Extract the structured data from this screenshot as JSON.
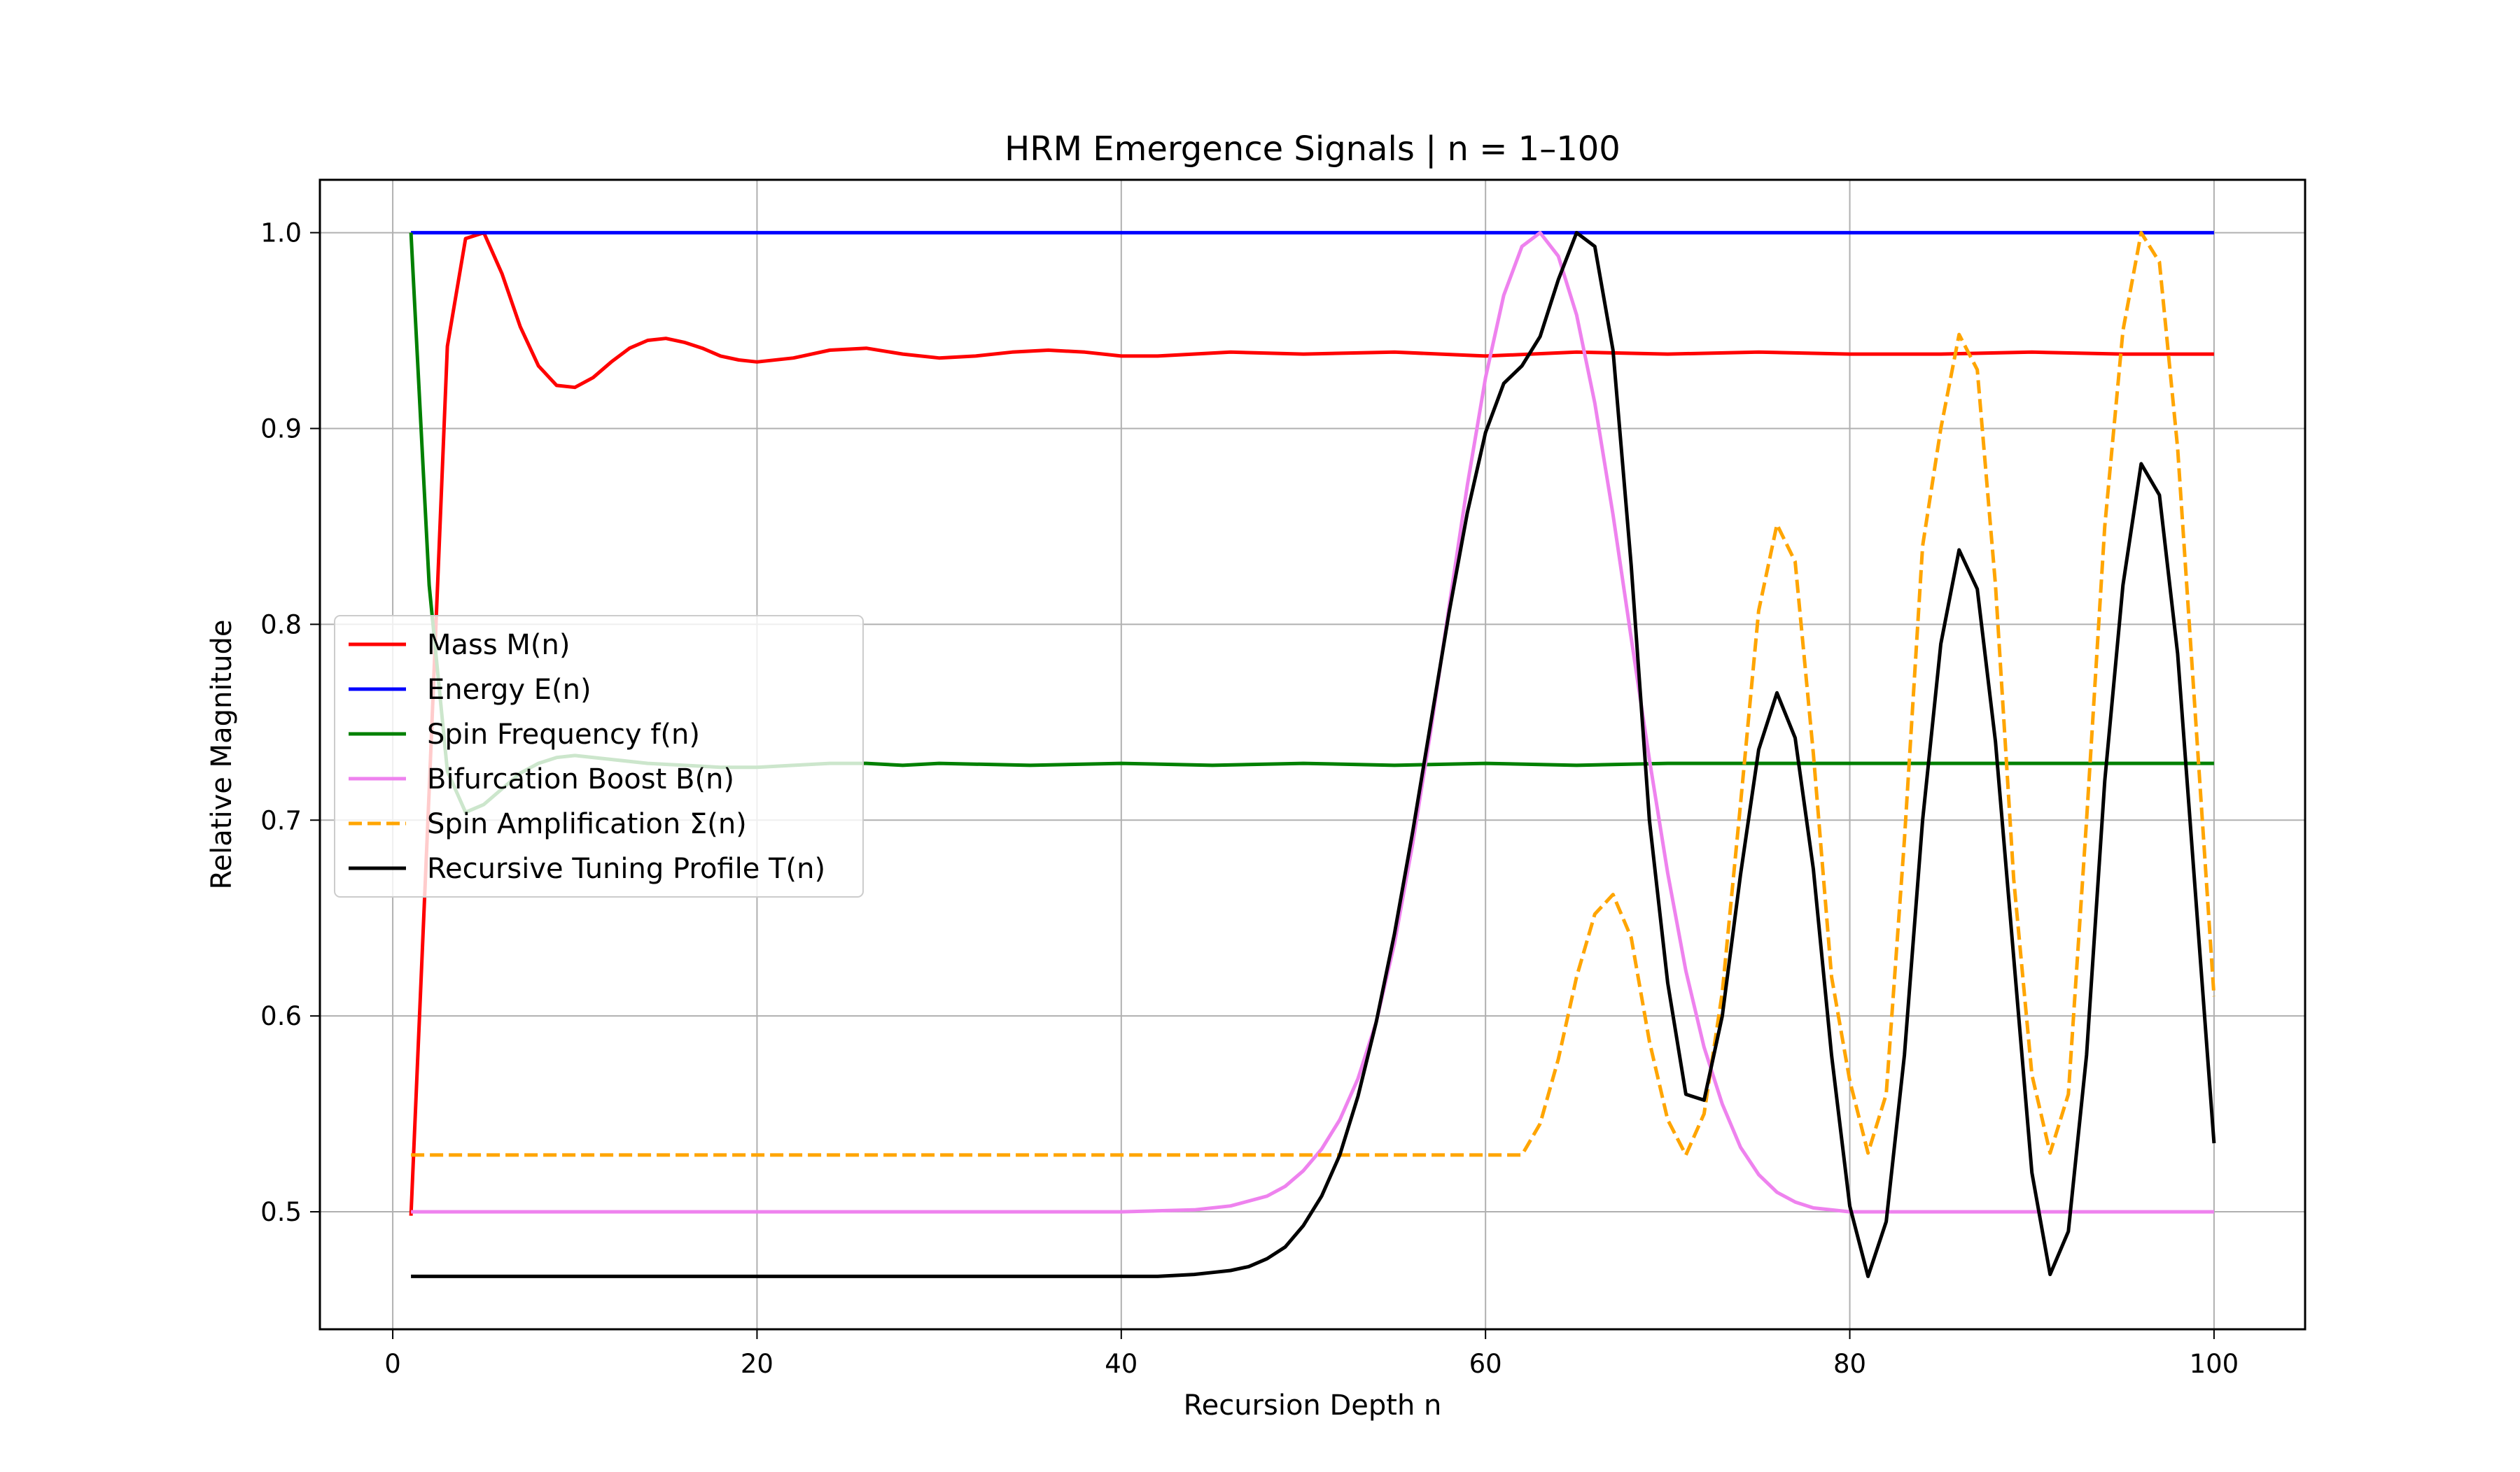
{
  "chart_data": {
    "type": "line",
    "title": "HRM Emergence Signals | n = 1–100",
    "xlabel": "Recursion Depth n",
    "ylabel": "Relative Magnitude",
    "xlim": [
      -4,
      105
    ],
    "ylim": [
      0.44,
      1.027
    ],
    "xticks": [
      0,
      20,
      40,
      60,
      80,
      100
    ],
    "yticks": [
      0.5,
      0.6,
      0.7,
      0.8,
      0.9,
      1.0
    ],
    "xtick_labels": [
      "0",
      "20",
      "40",
      "60",
      "80",
      "100"
    ],
    "ytick_labels": [
      "0.5",
      "0.6",
      "0.7",
      "0.8",
      "0.9",
      "1.0"
    ],
    "grid": true,
    "legend_position": "center-left",
    "series": [
      {
        "name": "Mass M(n)",
        "color": "#ff0000",
        "dash": "solid",
        "points": [
          [
            1,
            0.498
          ],
          [
            2,
            0.715
          ],
          [
            3,
            0.942
          ],
          [
            4,
            0.997
          ],
          [
            5,
            1.0
          ],
          [
            6,
            0.979
          ],
          [
            7,
            0.952
          ],
          [
            8,
            0.932
          ],
          [
            9,
            0.922
          ],
          [
            10,
            0.921
          ],
          [
            11,
            0.926
          ],
          [
            12,
            0.934
          ],
          [
            13,
            0.941
          ],
          [
            14,
            0.945
          ],
          [
            15,
            0.946
          ],
          [
            16,
            0.944
          ],
          [
            17,
            0.941
          ],
          [
            18,
            0.937
          ],
          [
            19,
            0.935
          ],
          [
            20,
            0.934
          ],
          [
            22,
            0.936
          ],
          [
            24,
            0.94
          ],
          [
            26,
            0.941
          ],
          [
            28,
            0.938
          ],
          [
            30,
            0.936
          ],
          [
            32,
            0.937
          ],
          [
            34,
            0.939
          ],
          [
            36,
            0.94
          ],
          [
            38,
            0.939
          ],
          [
            40,
            0.937
          ],
          [
            42,
            0.937
          ],
          [
            46,
            0.939
          ],
          [
            50,
            0.938
          ],
          [
            55,
            0.939
          ],
          [
            60,
            0.937
          ],
          [
            65,
            0.939
          ],
          [
            70,
            0.938
          ],
          [
            75,
            0.939
          ],
          [
            80,
            0.938
          ],
          [
            85,
            0.938
          ],
          [
            90,
            0.939
          ],
          [
            95,
            0.938
          ],
          [
            100,
            0.938
          ]
        ]
      },
      {
        "name": "Energy E(n)",
        "color": "#0000ff",
        "dash": "solid",
        "points": [
          [
            1,
            1.0
          ],
          [
            100,
            1.0
          ]
        ]
      },
      {
        "name": "Spin Frequency f(n)",
        "color": "#008000",
        "dash": "solid",
        "points": [
          [
            1,
            1.0
          ],
          [
            2,
            0.82
          ],
          [
            3,
            0.725
          ],
          [
            4,
            0.704
          ],
          [
            5,
            0.708
          ],
          [
            6,
            0.716
          ],
          [
            7,
            0.724
          ],
          [
            8,
            0.729
          ],
          [
            9,
            0.732
          ],
          [
            10,
            0.733
          ],
          [
            12,
            0.731
          ],
          [
            14,
            0.729
          ],
          [
            16,
            0.728
          ],
          [
            18,
            0.727
          ],
          [
            20,
            0.727
          ],
          [
            22,
            0.728
          ],
          [
            24,
            0.729
          ],
          [
            26,
            0.729
          ],
          [
            28,
            0.728
          ],
          [
            30,
            0.729
          ],
          [
            35,
            0.728
          ],
          [
            40,
            0.729
          ],
          [
            45,
            0.728
          ],
          [
            50,
            0.729
          ],
          [
            55,
            0.728
          ],
          [
            60,
            0.729
          ],
          [
            65,
            0.728
          ],
          [
            70,
            0.729
          ],
          [
            75,
            0.729
          ],
          [
            80,
            0.729
          ],
          [
            85,
            0.729
          ],
          [
            90,
            0.729
          ],
          [
            95,
            0.729
          ],
          [
            100,
            0.729
          ]
        ]
      },
      {
        "name": "Bifurcation Boost B(n)",
        "color": "#ee82ee",
        "dash": "solid",
        "points": [
          [
            1,
            0.5
          ],
          [
            40,
            0.5
          ],
          [
            44,
            0.501
          ],
          [
            46,
            0.503
          ],
          [
            48,
            0.508
          ],
          [
            49,
            0.513
          ],
          [
            50,
            0.521
          ],
          [
            51,
            0.532
          ],
          [
            52,
            0.547
          ],
          [
            53,
            0.568
          ],
          [
            54,
            0.597
          ],
          [
            55,
            0.637
          ],
          [
            56,
            0.688
          ],
          [
            57,
            0.746
          ],
          [
            58,
            0.809
          ],
          [
            59,
            0.871
          ],
          [
            60,
            0.926
          ],
          [
            61,
            0.968
          ],
          [
            62,
            0.993
          ],
          [
            63,
            1.0
          ],
          [
            64,
            0.988
          ],
          [
            65,
            0.958
          ],
          [
            66,
            0.913
          ],
          [
            67,
            0.856
          ],
          [
            68,
            0.793
          ],
          [
            69,
            0.731
          ],
          [
            70,
            0.673
          ],
          [
            71,
            0.623
          ],
          [
            72,
            0.584
          ],
          [
            73,
            0.555
          ],
          [
            74,
            0.533
          ],
          [
            75,
            0.519
          ],
          [
            76,
            0.51
          ],
          [
            77,
            0.505
          ],
          [
            78,
            0.502
          ],
          [
            80,
            0.5
          ],
          [
            100,
            0.5
          ]
        ]
      },
      {
        "name": "Spin Amplification Σ(n)",
        "color": "#ffa500",
        "dash": "dashed",
        "points": [
          [
            1,
            0.529
          ],
          [
            62,
            0.529
          ],
          [
            63,
            0.545
          ],
          [
            64,
            0.578
          ],
          [
            65,
            0.62
          ],
          [
            66,
            0.652
          ],
          [
            67,
            0.662
          ],
          [
            68,
            0.64
          ],
          [
            69,
            0.587
          ],
          [
            70,
            0.547
          ],
          [
            71,
            0.529
          ],
          [
            72,
            0.55
          ],
          [
            73,
            0.612
          ],
          [
            74,
            0.708
          ],
          [
            75,
            0.807
          ],
          [
            76,
            0.851
          ],
          [
            77,
            0.832
          ],
          [
            78,
            0.734
          ],
          [
            79,
            0.62
          ],
          [
            80,
            0.567
          ],
          [
            81,
            0.53
          ],
          [
            82,
            0.56
          ],
          [
            83,
            0.69
          ],
          [
            84,
            0.84
          ],
          [
            85,
            0.9
          ],
          [
            86,
            0.948
          ],
          [
            87,
            0.93
          ],
          [
            88,
            0.82
          ],
          [
            89,
            0.67
          ],
          [
            90,
            0.57
          ],
          [
            91,
            0.53
          ],
          [
            92,
            0.56
          ],
          [
            93,
            0.7
          ],
          [
            94,
            0.85
          ],
          [
            95,
            0.95
          ],
          [
            96,
            1.0
          ],
          [
            97,
            0.985
          ],
          [
            98,
            0.89
          ],
          [
            99,
            0.75
          ],
          [
            100,
            0.61
          ]
        ]
      },
      {
        "name": "Recursive Tuning Profile T(n)",
        "color": "#000000",
        "dash": "solid",
        "points": [
          [
            1,
            0.467
          ],
          [
            42,
            0.467
          ],
          [
            44,
            0.468
          ],
          [
            45,
            0.469
          ],
          [
            46,
            0.47
          ],
          [
            47,
            0.472
          ],
          [
            48,
            0.476
          ],
          [
            49,
            0.482
          ],
          [
            50,
            0.493
          ],
          [
            51,
            0.508
          ],
          [
            52,
            0.529
          ],
          [
            53,
            0.559
          ],
          [
            54,
            0.597
          ],
          [
            55,
            0.642
          ],
          [
            56,
            0.694
          ],
          [
            57,
            0.75
          ],
          [
            58,
            0.806
          ],
          [
            59,
            0.857
          ],
          [
            60,
            0.898
          ],
          [
            61,
            0.923
          ],
          [
            62,
            0.932
          ],
          [
            63,
            0.947
          ],
          [
            64,
            0.976
          ],
          [
            65,
            1.0
          ],
          [
            66,
            0.993
          ],
          [
            67,
            0.94
          ],
          [
            68,
            0.83
          ],
          [
            69,
            0.7
          ],
          [
            70,
            0.617
          ],
          [
            71,
            0.56
          ],
          [
            72,
            0.557
          ],
          [
            73,
            0.6
          ],
          [
            74,
            0.672
          ],
          [
            75,
            0.736
          ],
          [
            76,
            0.765
          ],
          [
            77,
            0.742
          ],
          [
            78,
            0.675
          ],
          [
            79,
            0.58
          ],
          [
            80,
            0.503
          ],
          [
            81,
            0.467
          ],
          [
            82,
            0.495
          ],
          [
            83,
            0.58
          ],
          [
            84,
            0.7
          ],
          [
            85,
            0.79
          ],
          [
            86,
            0.838
          ],
          [
            87,
            0.818
          ],
          [
            88,
            0.74
          ],
          [
            89,
            0.63
          ],
          [
            90,
            0.52
          ],
          [
            91,
            0.468
          ],
          [
            92,
            0.49
          ],
          [
            93,
            0.58
          ],
          [
            94,
            0.72
          ],
          [
            95,
            0.82
          ],
          [
            96,
            0.882
          ],
          [
            97,
            0.866
          ],
          [
            98,
            0.785
          ],
          [
            99,
            0.66
          ],
          [
            100,
            0.535
          ]
        ]
      }
    ]
  }
}
